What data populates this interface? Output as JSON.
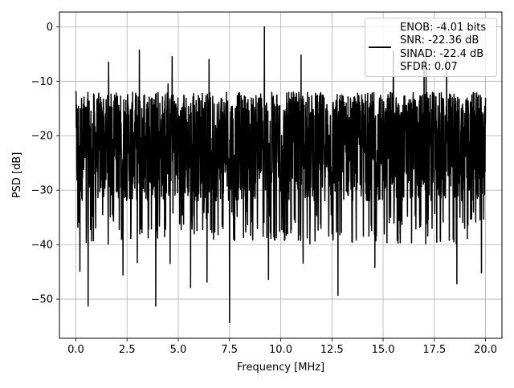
{
  "chart_data": {
    "type": "line",
    "title": "",
    "xlabel": "Frequency [MHz]",
    "ylabel": "PSD [dB]",
    "xlim": [
      -0.8,
      20.8
    ],
    "ylim": [
      -57.2,
      2.7
    ],
    "x_ticks": [
      0.0,
      2.5,
      5.0,
      7.5,
      10.0,
      12.5,
      15.0,
      17.5,
      20.0
    ],
    "x_tick_labels": [
      "0.0",
      "2.5",
      "5.0",
      "7.5",
      "10.0",
      "12.5",
      "15.0",
      "17.5",
      "20.0"
    ],
    "y_ticks": [
      0,
      -10,
      -20,
      -30,
      -40,
      -50
    ],
    "y_tick_labels": [
      "0",
      "−10",
      "−20",
      "−30",
      "−40",
      "−50"
    ],
    "grid": true,
    "legend_position": "top-right",
    "series": [
      {
        "name": "ENOB: -4.01 bits\nSNR: -22.36 dB\nSINAD: -22.4 dB\nSFDR: 0.07",
        "color": "#000000",
        "x_range": [
          0.0,
          20.0
        ],
        "typical_range": [
          -32,
          -12
        ],
        "peaks": [
          {
            "x": 0.0,
            "y": -11.8
          },
          {
            "x": 1.6,
            "y": -6.5
          },
          {
            "x": 3.0,
            "y": -9.5
          },
          {
            "x": 3.1,
            "y": -4.3
          },
          {
            "x": 4.5,
            "y": -10.5
          },
          {
            "x": 4.7,
            "y": -5.5
          },
          {
            "x": 6.5,
            "y": -6.0
          },
          {
            "x": 9.2,
            "y": 0.0
          },
          {
            "x": 11.0,
            "y": -5.5
          },
          {
            "x": 11.0,
            "y": -5.2
          },
          {
            "x": 15.5,
            "y": -4.5
          },
          {
            "x": 17.0,
            "y": -6.0
          },
          {
            "x": 17.1,
            "y": -4.5
          },
          {
            "x": 18.1,
            "y": -6.0
          }
        ],
        "troughs": [
          {
            "x": 0.2,
            "y": -44.9
          },
          {
            "x": 0.6,
            "y": -51.3
          },
          {
            "x": 2.3,
            "y": -45.6
          },
          {
            "x": 3.0,
            "y": -43.3
          },
          {
            "x": 3.9,
            "y": -51.3
          },
          {
            "x": 4.6,
            "y": -43.5
          },
          {
            "x": 5.6,
            "y": -47.9
          },
          {
            "x": 6.4,
            "y": -46.9
          },
          {
            "x": 7.5,
            "y": -54.3
          },
          {
            "x": 9.4,
            "y": -46.4
          },
          {
            "x": 11.1,
            "y": -43.4
          },
          {
            "x": 12.8,
            "y": -49.3
          },
          {
            "x": 14.6,
            "y": -44.2
          },
          {
            "x": 18.6,
            "y": -47.2
          },
          {
            "x": 19.8,
            "y": -45.2
          }
        ]
      }
    ]
  },
  "legend": {
    "line_color": "#000000",
    "entries": [
      "ENOB: -4.01 bits",
      "SNR: -22.36 dB",
      "SINAD: -22.4 dB",
      "SFDR: 0.07"
    ]
  }
}
